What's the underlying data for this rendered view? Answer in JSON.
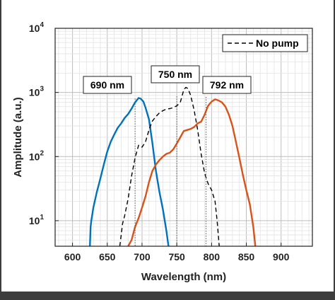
{
  "chart_data": {
    "type": "line",
    "xlabel": "Wavelength (nm)",
    "ylabel": "Amplitude (a.u.)",
    "xlim": [
      575,
      945
    ],
    "ylim": [
      4,
      10000
    ],
    "yscale": "log",
    "grid": "major-and-minor",
    "x_ticks": [
      600,
      650,
      700,
      750,
      800,
      850,
      900
    ],
    "x_tick_labels": [
      "600",
      "650",
      "700",
      "750",
      "800",
      "850",
      "900"
    ],
    "y_ticks": [
      {
        "value": 10,
        "base": "10",
        "exp": "1"
      },
      {
        "value": 100,
        "base": "10",
        "exp": "2"
      },
      {
        "value": 1000,
        "base": "10",
        "exp": "3"
      },
      {
        "value": 10000,
        "base": "10",
        "exp": "4"
      }
    ],
    "legend": {
      "position": "top-right",
      "entries": [
        {
          "label": "No pump",
          "style": "dashed",
          "color": "#000000"
        }
      ]
    },
    "annotations": [
      {
        "text": "690 nm",
        "x": 690
      },
      {
        "text": "750 nm",
        "x": 750
      },
      {
        "text": "792 nm",
        "x": 792
      }
    ],
    "series": [
      {
        "color": "#0072BD",
        "style": "solid",
        "points": [
          [
            625,
            3.5
          ],
          [
            626,
            8
          ],
          [
            627,
            10
          ],
          [
            630,
            16
          ],
          [
            635,
            28
          ],
          [
            640,
            45
          ],
          [
            645,
            75
          ],
          [
            650,
            120
          ],
          [
            655,
            170
          ],
          [
            660,
            220
          ],
          [
            665,
            280
          ],
          [
            670,
            330
          ],
          [
            675,
            400
          ],
          [
            680,
            460
          ],
          [
            685,
            560
          ],
          [
            690,
            700
          ],
          [
            695,
            820
          ],
          [
            698,
            800
          ],
          [
            702,
            720
          ],
          [
            705,
            580
          ],
          [
            710,
            380
          ],
          [
            715,
            160
          ],
          [
            720,
            60
          ],
          [
            725,
            28
          ],
          [
            730,
            15
          ],
          [
            735,
            7
          ],
          [
            738,
            4
          ]
        ]
      },
      {
        "color": "#000000",
        "style": "dashed",
        "points": [
          [
            668,
            3.5
          ],
          [
            670,
            6
          ],
          [
            672,
            9
          ],
          [
            675,
            12
          ],
          [
            680,
            22
          ],
          [
            685,
            50
          ],
          [
            690,
            95
          ],
          [
            695,
            150
          ],
          [
            700,
            140
          ],
          [
            705,
            170
          ],
          [
            710,
            260
          ],
          [
            715,
            360
          ],
          [
            720,
            420
          ],
          [
            725,
            480
          ],
          [
            730,
            520
          ],
          [
            735,
            550
          ],
          [
            740,
            560
          ],
          [
            745,
            580
          ],
          [
            750,
            620
          ],
          [
            755,
            700
          ],
          [
            760,
            1100
          ],
          [
            763,
            1200
          ],
          [
            766,
            1150
          ],
          [
            770,
            900
          ],
          [
            775,
            520
          ],
          [
            780,
            260
          ],
          [
            785,
            110
          ],
          [
            790,
            55
          ],
          [
            795,
            38
          ],
          [
            800,
            30
          ],
          [
            805,
            20
          ],
          [
            808,
            10
          ],
          [
            811,
            4
          ]
        ]
      },
      {
        "color": "#D95319",
        "style": "solid",
        "points": [
          [
            680,
            3.5
          ],
          [
            685,
            5
          ],
          [
            690,
            8
          ],
          [
            695,
            11
          ],
          [
            700,
            16
          ],
          [
            705,
            24
          ],
          [
            710,
            40
          ],
          [
            715,
            60
          ],
          [
            720,
            75
          ],
          [
            725,
            88
          ],
          [
            730,
            100
          ],
          [
            735,
            110
          ],
          [
            740,
            115
          ],
          [
            745,
            130
          ],
          [
            750,
            160
          ],
          [
            755,
            200
          ],
          [
            760,
            250
          ],
          [
            765,
            260
          ],
          [
            770,
            270
          ],
          [
            775,
            290
          ],
          [
            780,
            330
          ],
          [
            785,
            350
          ],
          [
            790,
            450
          ],
          [
            795,
            620
          ],
          [
            800,
            720
          ],
          [
            805,
            780
          ],
          [
            810,
            750
          ],
          [
            815,
            700
          ],
          [
            820,
            600
          ],
          [
            825,
            450
          ],
          [
            830,
            300
          ],
          [
            835,
            170
          ],
          [
            840,
            95
          ],
          [
            845,
            52
          ],
          [
            850,
            30
          ],
          [
            855,
            18
          ],
          [
            860,
            8
          ],
          [
            863,
            4
          ]
        ]
      }
    ]
  }
}
